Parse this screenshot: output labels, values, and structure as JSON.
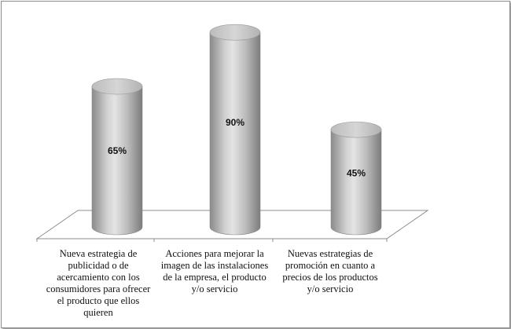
{
  "chart_data": {
    "type": "bar",
    "style": "3d-cylinder",
    "categories": [
      "Nueva estrategia de publicidad o de acercamiento con los consumidores para ofrecer el producto que ellos quieren",
      "Acciones para mejorar la imagen de las instalaciones de la empresa, el  producto y/o servicio",
      "Nuevas estrategias de promoción  en cuanto a precios de los productos y/o servicio"
    ],
    "values": [
      65,
      90,
      45
    ],
    "data_labels": [
      "65%",
      "90%",
      "45%"
    ],
    "title": "",
    "xlabel": "",
    "ylabel": "",
    "ylim": [
      0,
      100
    ],
    "grid": false,
    "legend": "none",
    "colors": {
      "bar_dark": "#7a7a7a",
      "bar_light": "#e2e2e2",
      "top_face": "#c9c9c9",
      "floor_line": "#8c8c8c"
    }
  }
}
